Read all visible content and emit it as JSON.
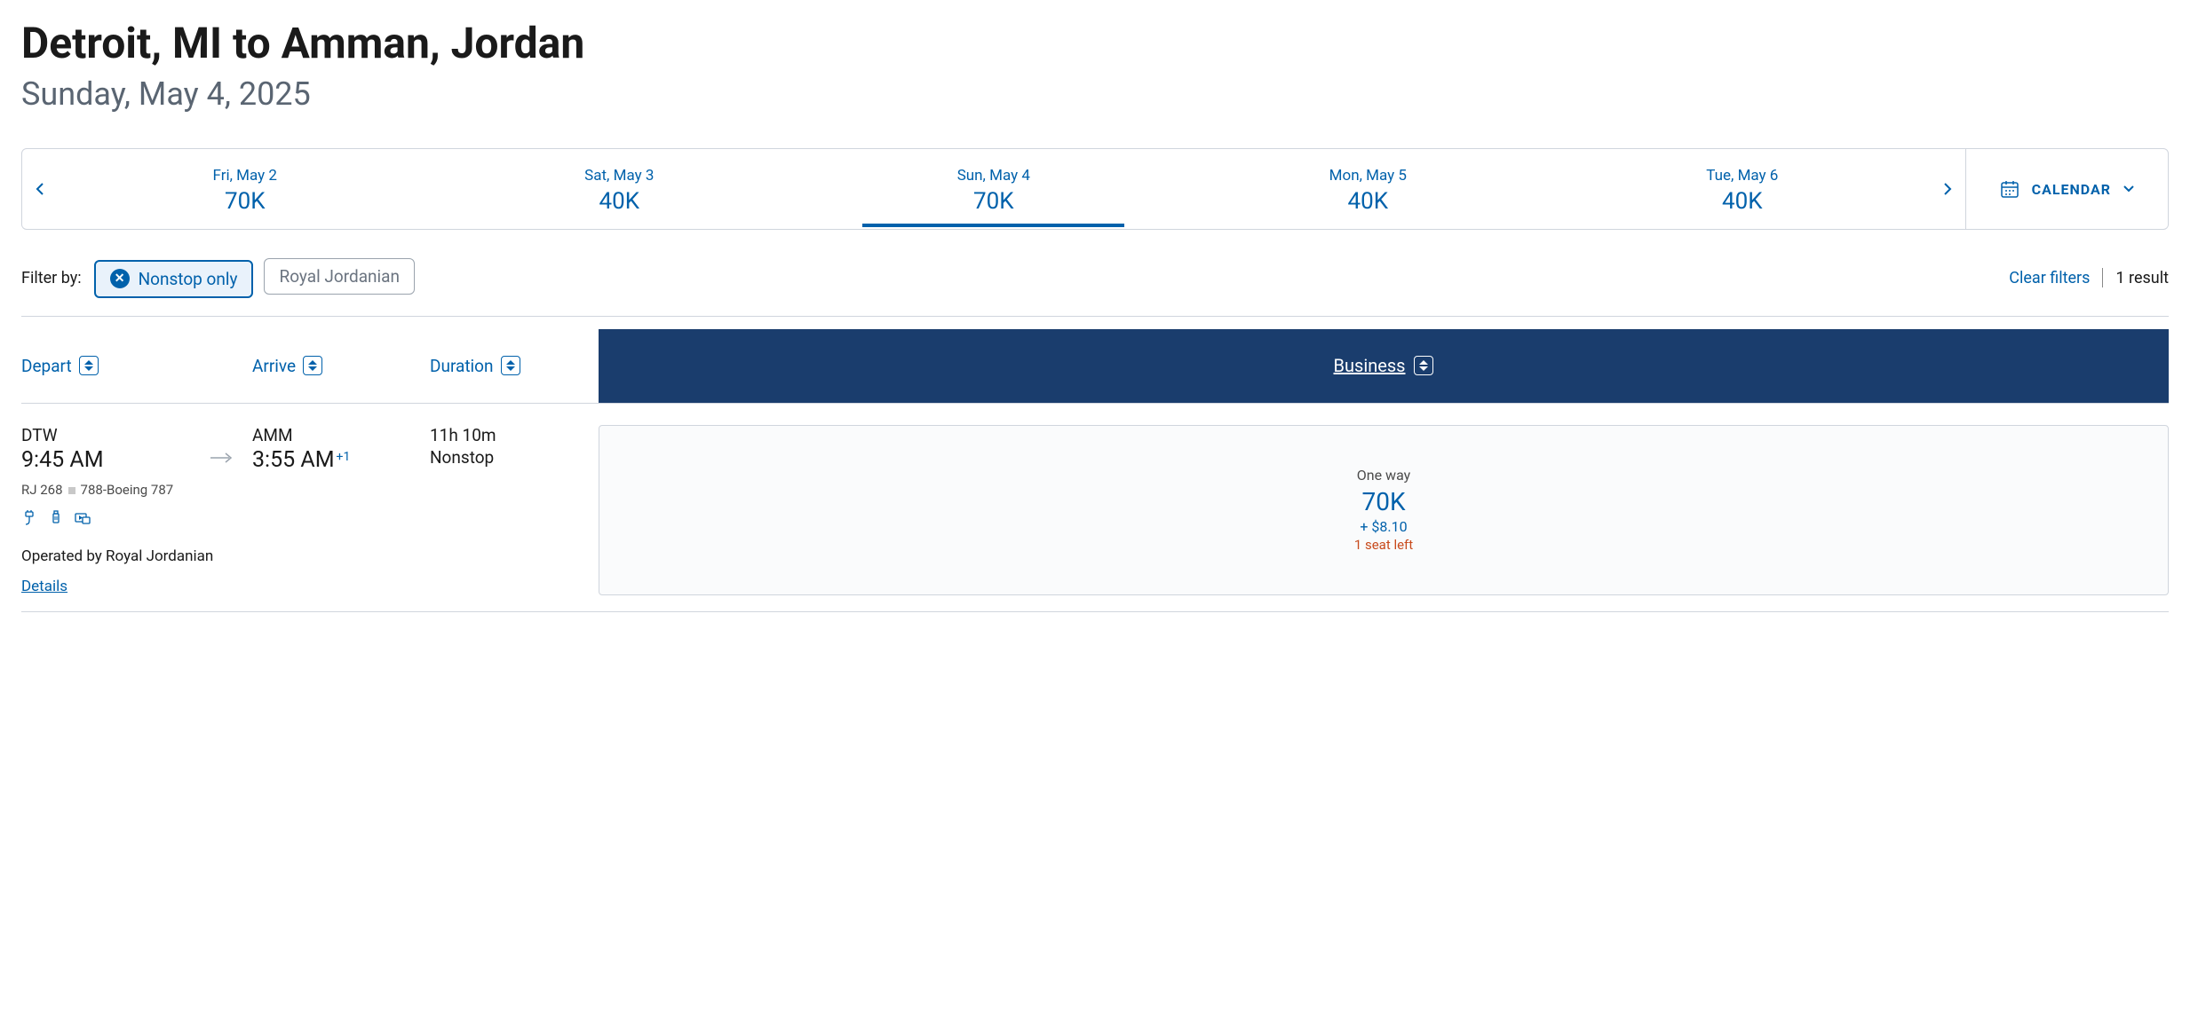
{
  "header": {
    "title": "Detroit, MI to Amman, Jordan",
    "subtitle": "Sunday, May 4, 2025"
  },
  "date_strip": {
    "items": [
      {
        "label": "Fri, May 2",
        "price": "70K",
        "selected": false
      },
      {
        "label": "Sat, May 3",
        "price": "40K",
        "selected": false
      },
      {
        "label": "Sun, May 4",
        "price": "70K",
        "selected": true
      },
      {
        "label": "Mon, May 5",
        "price": "40K",
        "selected": false
      },
      {
        "label": "Tue, May 6",
        "price": "40K",
        "selected": false
      }
    ],
    "calendar_label": "CALENDAR"
  },
  "filters": {
    "label": "Filter by:",
    "chips": [
      {
        "label": "Nonstop only",
        "active": true
      },
      {
        "label": "Royal Jordanian",
        "active": false
      }
    ],
    "clear_label": "Clear filters",
    "result_count": "1 result"
  },
  "columns": {
    "depart": "Depart",
    "arrive": "Arrive",
    "duration": "Duration",
    "business": "Business"
  },
  "result": {
    "depart_code": "DTW",
    "depart_time": "9:45 AM",
    "arrive_code": "AMM",
    "arrive_time": "3:55 AM",
    "arrive_plus_day": "+1",
    "duration": "11h 10m",
    "stops": "Nonstop",
    "flight_number": "RJ 268",
    "aircraft": "788-Boeing 787",
    "operated_by": "Operated by Royal Jordanian",
    "details_label": "Details",
    "fare": {
      "label": "One way",
      "points": "70K",
      "fees": "+ $8.10",
      "seats_left": "1 seat left"
    }
  },
  "colors": {
    "primary": "#0061ab",
    "business_bg": "#1a3d6d",
    "warning": "#c84a1c",
    "border": "#d0d5dd",
    "text": "#1a1a1a",
    "muted": "#5a6572"
  }
}
